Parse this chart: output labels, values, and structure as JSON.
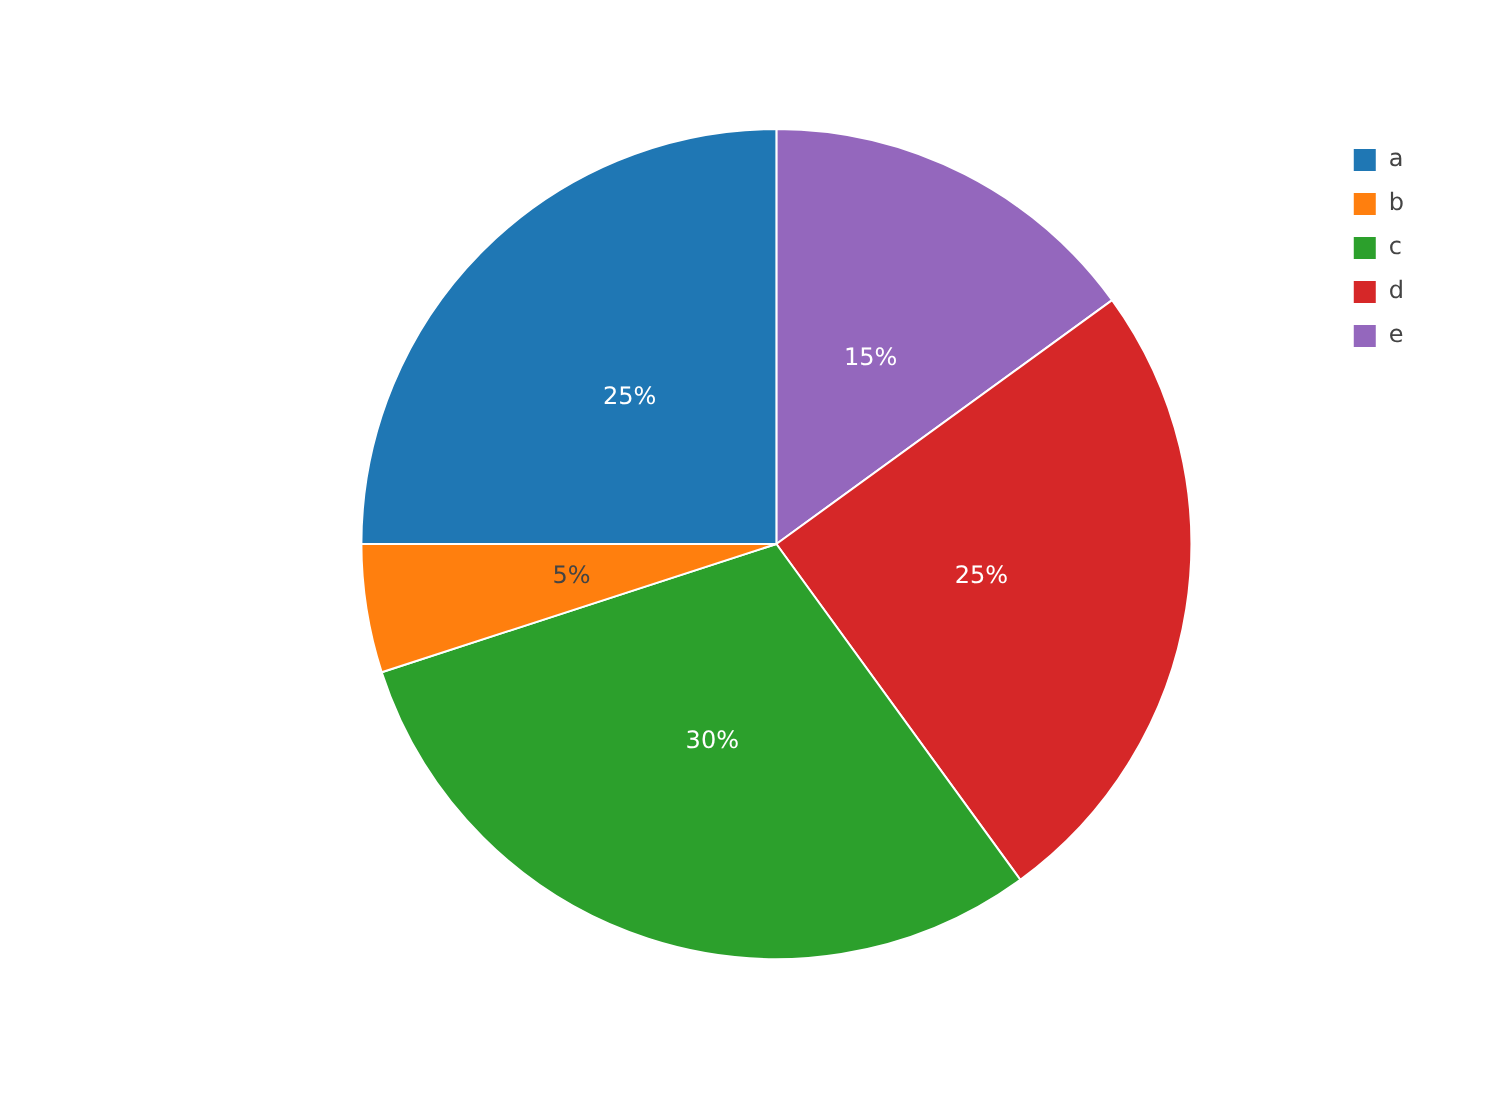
{
  "chart_data": {
    "type": "pie",
    "categories": [
      "a",
      "b",
      "c",
      "d",
      "e"
    ],
    "values": [
      25,
      5,
      30,
      25,
      15
    ],
    "colors": [
      "#1f77b4",
      "#ff7f0e",
      "#2ca02c",
      "#d62728",
      "#9467bd"
    ],
    "value_labels": [
      "25%",
      "5%",
      "30%",
      "25%",
      "15%"
    ],
    "legend": "top right"
  }
}
